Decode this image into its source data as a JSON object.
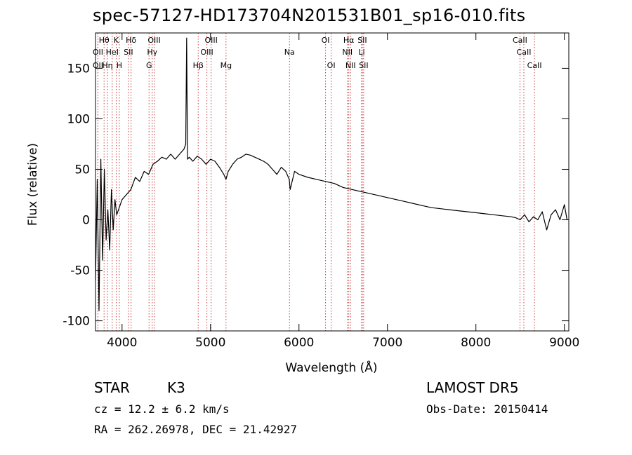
{
  "chart_data": {
    "type": "line",
    "title": "spec-57127-HD173704N201531B01_sp16-010.fits",
    "xlabel": "Wavelength (Å)",
    "ylabel": "Flux (relative)",
    "xlim": [
      3700,
      9050
    ],
    "ylim": [
      -110,
      185
    ],
    "xticks": [
      4000,
      5000,
      6000,
      7000,
      8000,
      9000
    ],
    "yticks": [
      -100,
      -50,
      0,
      50,
      100,
      150
    ],
    "grid": false,
    "series": [
      {
        "color": "#000000",
        "x": [
          3700,
          3720,
          3740,
          3760,
          3780,
          3800,
          3820,
          3840,
          3860,
          3880,
          3900,
          3920,
          3940,
          3960,
          3980,
          4000,
          4050,
          4100,
          4150,
          4200,
          4250,
          4300,
          4350,
          4400,
          4450,
          4500,
          4550,
          4600,
          4650,
          4700,
          4720,
          4730,
          4740,
          4760,
          4800,
          4850,
          4900,
          4950,
          5000,
          5050,
          5100,
          5150,
          5175,
          5200,
          5250,
          5300,
          5350,
          5400,
          5450,
          5500,
          5550,
          5600,
          5650,
          5700,
          5750,
          5800,
          5850,
          5890,
          5900,
          5950,
          6000,
          6100,
          6200,
          6300,
          6400,
          6500,
          6600,
          6700,
          6800,
          6900,
          7000,
          7100,
          7200,
          7300,
          7400,
          7500,
          7600,
          7700,
          7800,
          7900,
          8000,
          8100,
          8200,
          8300,
          8400,
          8450,
          8500,
          8550,
          8600,
          8650,
          8700,
          8750,
          8800,
          8850,
          8900,
          8950,
          9000,
          9030
        ],
        "y": [
          -60,
          40,
          -90,
          60,
          -40,
          50,
          -20,
          10,
          -30,
          30,
          -10,
          20,
          5,
          10,
          15,
          20,
          25,
          30,
          42,
          38,
          48,
          45,
          55,
          58,
          62,
          60,
          65,
          60,
          65,
          70,
          75,
          180,
          60,
          62,
          58,
          63,
          60,
          55,
          60,
          58,
          52,
          45,
          40,
          48,
          55,
          60,
          62,
          65,
          64,
          62,
          60,
          58,
          55,
          50,
          45,
          52,
          48,
          40,
          30,
          48,
          45,
          42,
          40,
          38,
          36,
          32,
          30,
          28,
          26,
          24,
          22,
          20,
          18,
          16,
          14,
          12,
          11,
          10,
          9,
          8,
          7,
          6,
          5,
          4,
          3,
          2,
          0,
          5,
          -2,
          3,
          0,
          8,
          -10,
          5,
          10,
          0,
          15,
          0
        ]
      }
    ],
    "line_labels": [
      {
        "text": "Hθ",
        "x": 3797,
        "row": 0
      },
      {
        "text": "OII",
        "x": 3727,
        "row": 1
      },
      {
        "text": "OII",
        "x": 3727,
        "row": 2
      },
      {
        "text": "Hη",
        "x": 3835,
        "row": 2
      },
      {
        "text": "HeI",
        "x": 3889,
        "row": 1
      },
      {
        "text": "K",
        "x": 3934,
        "row": 0
      },
      {
        "text": "H",
        "x": 3969,
        "row": 2
      },
      {
        "text": "Hδ",
        "x": 4102,
        "row": 0
      },
      {
        "text": "SII",
        "x": 4072,
        "row": 1
      },
      {
        "text": "OIII",
        "x": 4363,
        "row": 0
      },
      {
        "text": "Hγ",
        "x": 4341,
        "row": 1
      },
      {
        "text": "G",
        "x": 4305,
        "row": 2
      },
      {
        "text": "OIII",
        "x": 5007,
        "row": 0
      },
      {
        "text": "OIII",
        "x": 4959,
        "row": 1
      },
      {
        "text": "Hβ",
        "x": 4861,
        "row": 2
      },
      {
        "text": "Mg",
        "x": 5175,
        "row": 2
      },
      {
        "text": "Na",
        "x": 5893,
        "row": 1
      },
      {
        "text": "OI",
        "x": 6300,
        "row": 0
      },
      {
        "text": "OI",
        "x": 6364,
        "row": 2
      },
      {
        "text": "Hα",
        "x": 6563,
        "row": 0
      },
      {
        "text": "NII",
        "x": 6548,
        "row": 1
      },
      {
        "text": "NII",
        "x": 6583,
        "row": 2
      },
      {
        "text": "SII",
        "x": 6716,
        "row": 0
      },
      {
        "text": "Li",
        "x": 6708,
        "row": 1
      },
      {
        "text": "SII",
        "x": 6731,
        "row": 2
      },
      {
        "text": "CaII",
        "x": 8498,
        "row": 0
      },
      {
        "text": "CaII",
        "x": 8542,
        "row": 1
      },
      {
        "text": "CaII",
        "x": 8662,
        "row": 2
      }
    ]
  },
  "footer": {
    "class_text": "STAR",
    "subclass_text": "K3",
    "survey_text": "LAMOST DR5",
    "cz_text": "cz = 12.2 ± 6.2 km/s",
    "obs_date_text": "Obs-Date: 20150414",
    "radec_text": "RA = 262.26978, DEC =  21.42927"
  }
}
